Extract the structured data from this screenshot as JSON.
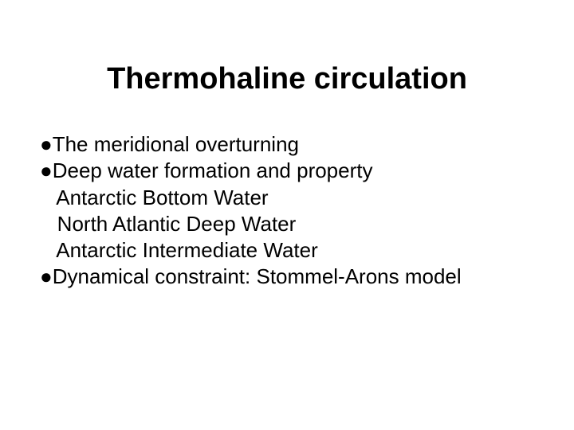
{
  "slide": {
    "title": "Thermohaline circulation",
    "title_fontsize": 38,
    "title_weight": "bold",
    "body_fontsize": 26,
    "text_color": "#000000",
    "background_color": "#ffffff",
    "lines": [
      {
        "bullet": "●",
        "indent": 0,
        "text": "The meridional overturning"
      },
      {
        "bullet": "●",
        "indent": 0,
        "text": "Deep water formation and property"
      },
      {
        "bullet": "",
        "indent": 1,
        "text": "Antarctic Bottom Water"
      },
      {
        "bullet": "",
        "indent": 1,
        "text": "North Atlantic Deep Water"
      },
      {
        "bullet": "",
        "indent": 1,
        "text": "Antarctic Intermediate Water"
      },
      {
        "bullet": "●",
        "indent": 0,
        "text": "Dynamical constraint: Stommel-Arons model"
      }
    ]
  }
}
